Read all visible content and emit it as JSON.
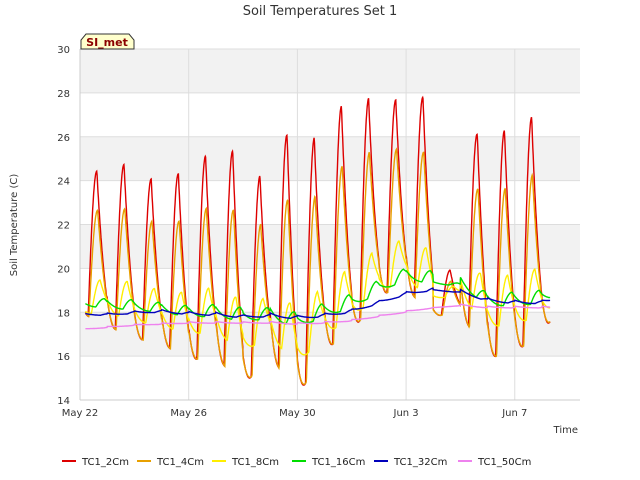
{
  "chart_data": {
    "type": "line",
    "title": "Soil Temperatures Set 1",
    "xlabel": "Time",
    "ylabel": "Soil Temperature (C)",
    "site_label": "SI_met",
    "ylim": [
      14,
      30
    ],
    "yticks": [
      14,
      16,
      18,
      20,
      22,
      24,
      26,
      28,
      30
    ],
    "xlim_days": [
      0,
      18.4
    ],
    "xticks": [
      {
        "day": 0,
        "label": "May 22"
      },
      {
        "day": 4,
        "label": "May 26"
      },
      {
        "day": 8,
        "label": "May 30"
      },
      {
        "day": 12,
        "label": "Jun 3"
      },
      {
        "day": 16,
        "label": "Jun 7"
      }
    ],
    "x_start_date": "May 22",
    "x_unit": "days since May 22",
    "grid": true,
    "banded_background": true,
    "legend_placement": "bottom",
    "daily": {
      "max": [
        24.2,
        24.5,
        24.0,
        24.0,
        25.2,
        24.8,
        24.8,
        25.3,
        26.8,
        27.7,
        28.4,
        27.8,
        27.3,
        19.9,
        25.3,
        26.4,
        27.2
      ],
      "min": [
        17.4,
        16.8,
        16.6,
        15.8,
        16.0,
        14.6,
        16.1,
        14.1,
        16.3,
        17.1,
        18.8,
        19.1,
        17.8,
        17.9,
        15.9,
        16.2,
        17.0
      ]
    },
    "series": [
      {
        "name": "TC1_2Cm",
        "color": "#dd0000",
        "amp": 1.0,
        "lag": 0.0,
        "base": [
          18.0,
          17.4,
          16.8,
          16.6,
          15.8,
          16.0,
          14.6,
          16.1,
          14.1,
          16.3,
          17.1,
          18.8,
          19.1,
          17.8,
          18.0,
          15.9,
          16.2,
          17.0,
          18.9
        ]
      },
      {
        "name": "TC1_4Cm",
        "color": "#e8a000",
        "amp": 0.74,
        "lag": 0.03,
        "base": [
          18.0,
          17.4,
          16.8,
          16.6,
          15.8,
          16.0,
          14.6,
          16.1,
          14.1,
          16.3,
          17.1,
          18.8,
          19.1,
          17.8,
          18.0,
          15.9,
          16.2,
          17.0,
          18.9
        ]
      },
      {
        "name": "TC1_8Cm",
        "color": "#ffee00",
        "amp": 0.22,
        "lag": 0.12,
        "base": [
          17.9,
          18.0,
          17.6,
          17.4,
          17.0,
          17.1,
          16.2,
          16.9,
          15.6,
          17.0,
          17.7,
          18.9,
          19.5,
          18.6,
          18.8,
          17.3,
          17.5,
          17.8,
          19.0
        ]
      },
      {
        "name": "TC1_16Cm",
        "color": "#00dd00",
        "amp": 0.06,
        "lag": 0.28,
        "base": [
          18.3,
          18.2,
          18.1,
          18.0,
          17.8,
          17.8,
          17.6,
          17.7,
          17.3,
          17.8,
          18.2,
          18.9,
          19.5,
          19.3,
          19.2,
          18.3,
          18.3,
          18.4,
          19.0
        ]
      },
      {
        "name": "TC1_32Cm",
        "color": "#0000bb",
        "amp": 0.012,
        "lag": 0.45,
        "base": [
          17.9,
          17.85,
          17.95,
          18.0,
          17.9,
          17.85,
          17.75,
          17.8,
          17.7,
          17.8,
          18.0,
          18.4,
          18.8,
          19.0,
          18.9,
          18.5,
          18.4,
          18.4,
          18.7
        ]
      },
      {
        "name": "TC1_50Cm",
        "color": "#ee82ee",
        "amp": 0.004,
        "lag": 0.6,
        "base": [
          17.2,
          17.3,
          17.4,
          17.45,
          17.5,
          17.5,
          17.5,
          17.5,
          17.45,
          17.5,
          17.6,
          17.8,
          18.0,
          18.2,
          18.3,
          18.2,
          18.2,
          18.2,
          18.2
        ]
      }
    ]
  }
}
